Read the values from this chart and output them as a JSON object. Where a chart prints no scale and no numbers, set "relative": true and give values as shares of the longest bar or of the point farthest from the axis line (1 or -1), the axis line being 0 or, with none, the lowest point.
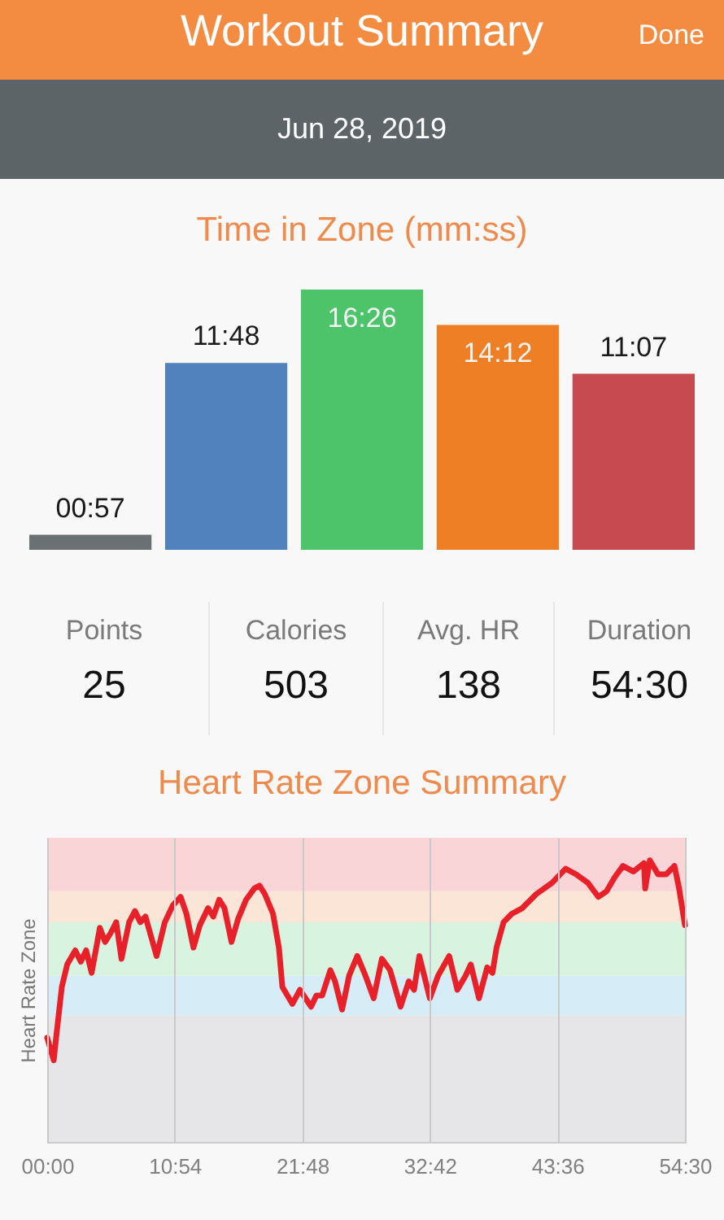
{
  "chart_data": [
    {
      "type": "other",
      "title": "Workout Summary",
      "subtitle": "Jun 28, 2019",
      "annotations": [
        "Done"
      ]
    },
    {
      "type": "bar",
      "title": "Time in Zone (mm:ss)",
      "categories": [
        null,
        null,
        null,
        null,
        null
      ],
      "values": [
        57,
        708,
        986,
        852,
        667
      ],
      "colors": [
        "#6b7073",
        "#5182bd",
        "#4dc46a",
        "#ee7f25",
        "#c84a51"
      ],
      "value_labels": [
        "00:57",
        "11:48",
        "16:26",
        "14:12",
        "11:07"
      ],
      "tick_labels": false
    },
    {
      "type": "other",
      "annotations": [
        "Points",
        "25",
        "Calories",
        "503",
        "Avg. HR",
        "138",
        "Duration",
        "54:30"
      ]
    },
    {
      "type": "line",
      "title": "Heart Rate Zone Summary",
      "ylabel": "Heart Rate Zone",
      "relative": true,
      "color": "#e8202a",
      "grid": "x",
      "xlim": [
        0,
        54.5
      ],
      "xticks": [
        {
          "value": 0,
          "label": "00:00"
        },
        {
          "value": 10.9,
          "label": "10:54"
        },
        {
          "value": 21.8,
          "label": "21:48"
        },
        {
          "value": 32.7,
          "label": "32:42"
        },
        {
          "value": 43.6,
          "label": "43:36"
        },
        {
          "value": 54.5,
          "label": "54:30"
        }
      ],
      "bands": [
        {
          "axis": "y",
          "from": 0,
          "to": 0.45,
          "color": "#e6e6e8"
        },
        {
          "axis": "y",
          "from": 0.45,
          "to": 0.59,
          "color": "#d6ecf6"
        },
        {
          "axis": "y",
          "from": 0.59,
          "to": 0.78,
          "color": "#d8f3df"
        },
        {
          "axis": "y",
          "from": 0.78,
          "to": 0.89,
          "color": "#fbe5d6"
        },
        {
          "axis": "y",
          "from": 0.89,
          "to": 1.08,
          "color": "#f9d5d8"
        }
      ],
      "x": [
        0,
        0.56,
        0.79,
        1.25,
        1.71,
        2.4,
        2.87,
        3.33,
        3.8,
        4.5,
        4.95,
        5.4,
        5.9,
        6.35,
        7.0,
        7.5,
        7.96,
        8.4,
        9.35,
        10.05,
        10.74,
        11.4,
        11.9,
        12.5,
        13.05,
        13.75,
        14.2,
        14.7,
        15.15,
        15.75,
        16.3,
        17.0,
        17.7,
        18.15,
        18.6,
        19.3,
        19.8,
        20.1,
        20.95,
        21.6,
        22.55,
        23.0,
        23.5,
        24.2,
        24.6,
        25.2,
        25.8,
        26.5,
        27.2,
        27.9,
        28.6,
        29.3,
        30.2,
        30.9,
        31.35,
        31.8,
        32.7,
        33.4,
        34.35,
        35.05,
        35.75,
        36.2,
        36.9,
        37.6,
        38.05,
        38.4,
        39.0,
        39.7,
        40.6,
        41.8,
        43.15,
        44.3,
        45.2,
        46.2,
        47.1,
        47.8,
        48.5,
        49.2,
        50.1,
        51.0,
        51.1,
        51.5,
        52.2,
        52.9,
        53.6,
        54.0,
        54.5
      ],
      "values": [
        0.37,
        0.29,
        0.38,
        0.55,
        0.63,
        0.68,
        0.64,
        0.68,
        0.6,
        0.76,
        0.71,
        0.74,
        0.78,
        0.65,
        0.78,
        0.82,
        0.78,
        0.8,
        0.66,
        0.78,
        0.84,
        0.87,
        0.81,
        0.69,
        0.77,
        0.83,
        0.8,
        0.86,
        0.83,
        0.71,
        0.79,
        0.86,
        0.9,
        0.91,
        0.88,
        0.81,
        0.69,
        0.55,
        0.49,
        0.54,
        0.48,
        0.52,
        0.52,
        0.61,
        0.57,
        0.47,
        0.59,
        0.66,
        0.59,
        0.51,
        0.65,
        0.61,
        0.48,
        0.57,
        0.54,
        0.66,
        0.51,
        0.59,
        0.66,
        0.54,
        0.59,
        0.63,
        0.51,
        0.62,
        0.6,
        0.69,
        0.78,
        0.81,
        0.83,
        0.88,
        0.92,
        0.97,
        0.95,
        0.92,
        0.87,
        0.89,
        0.94,
        0.98,
        0.96,
        0.99,
        0.9,
        1.0,
        0.95,
        0.95,
        0.98,
        0.9,
        0.77
      ]
    }
  ]
}
